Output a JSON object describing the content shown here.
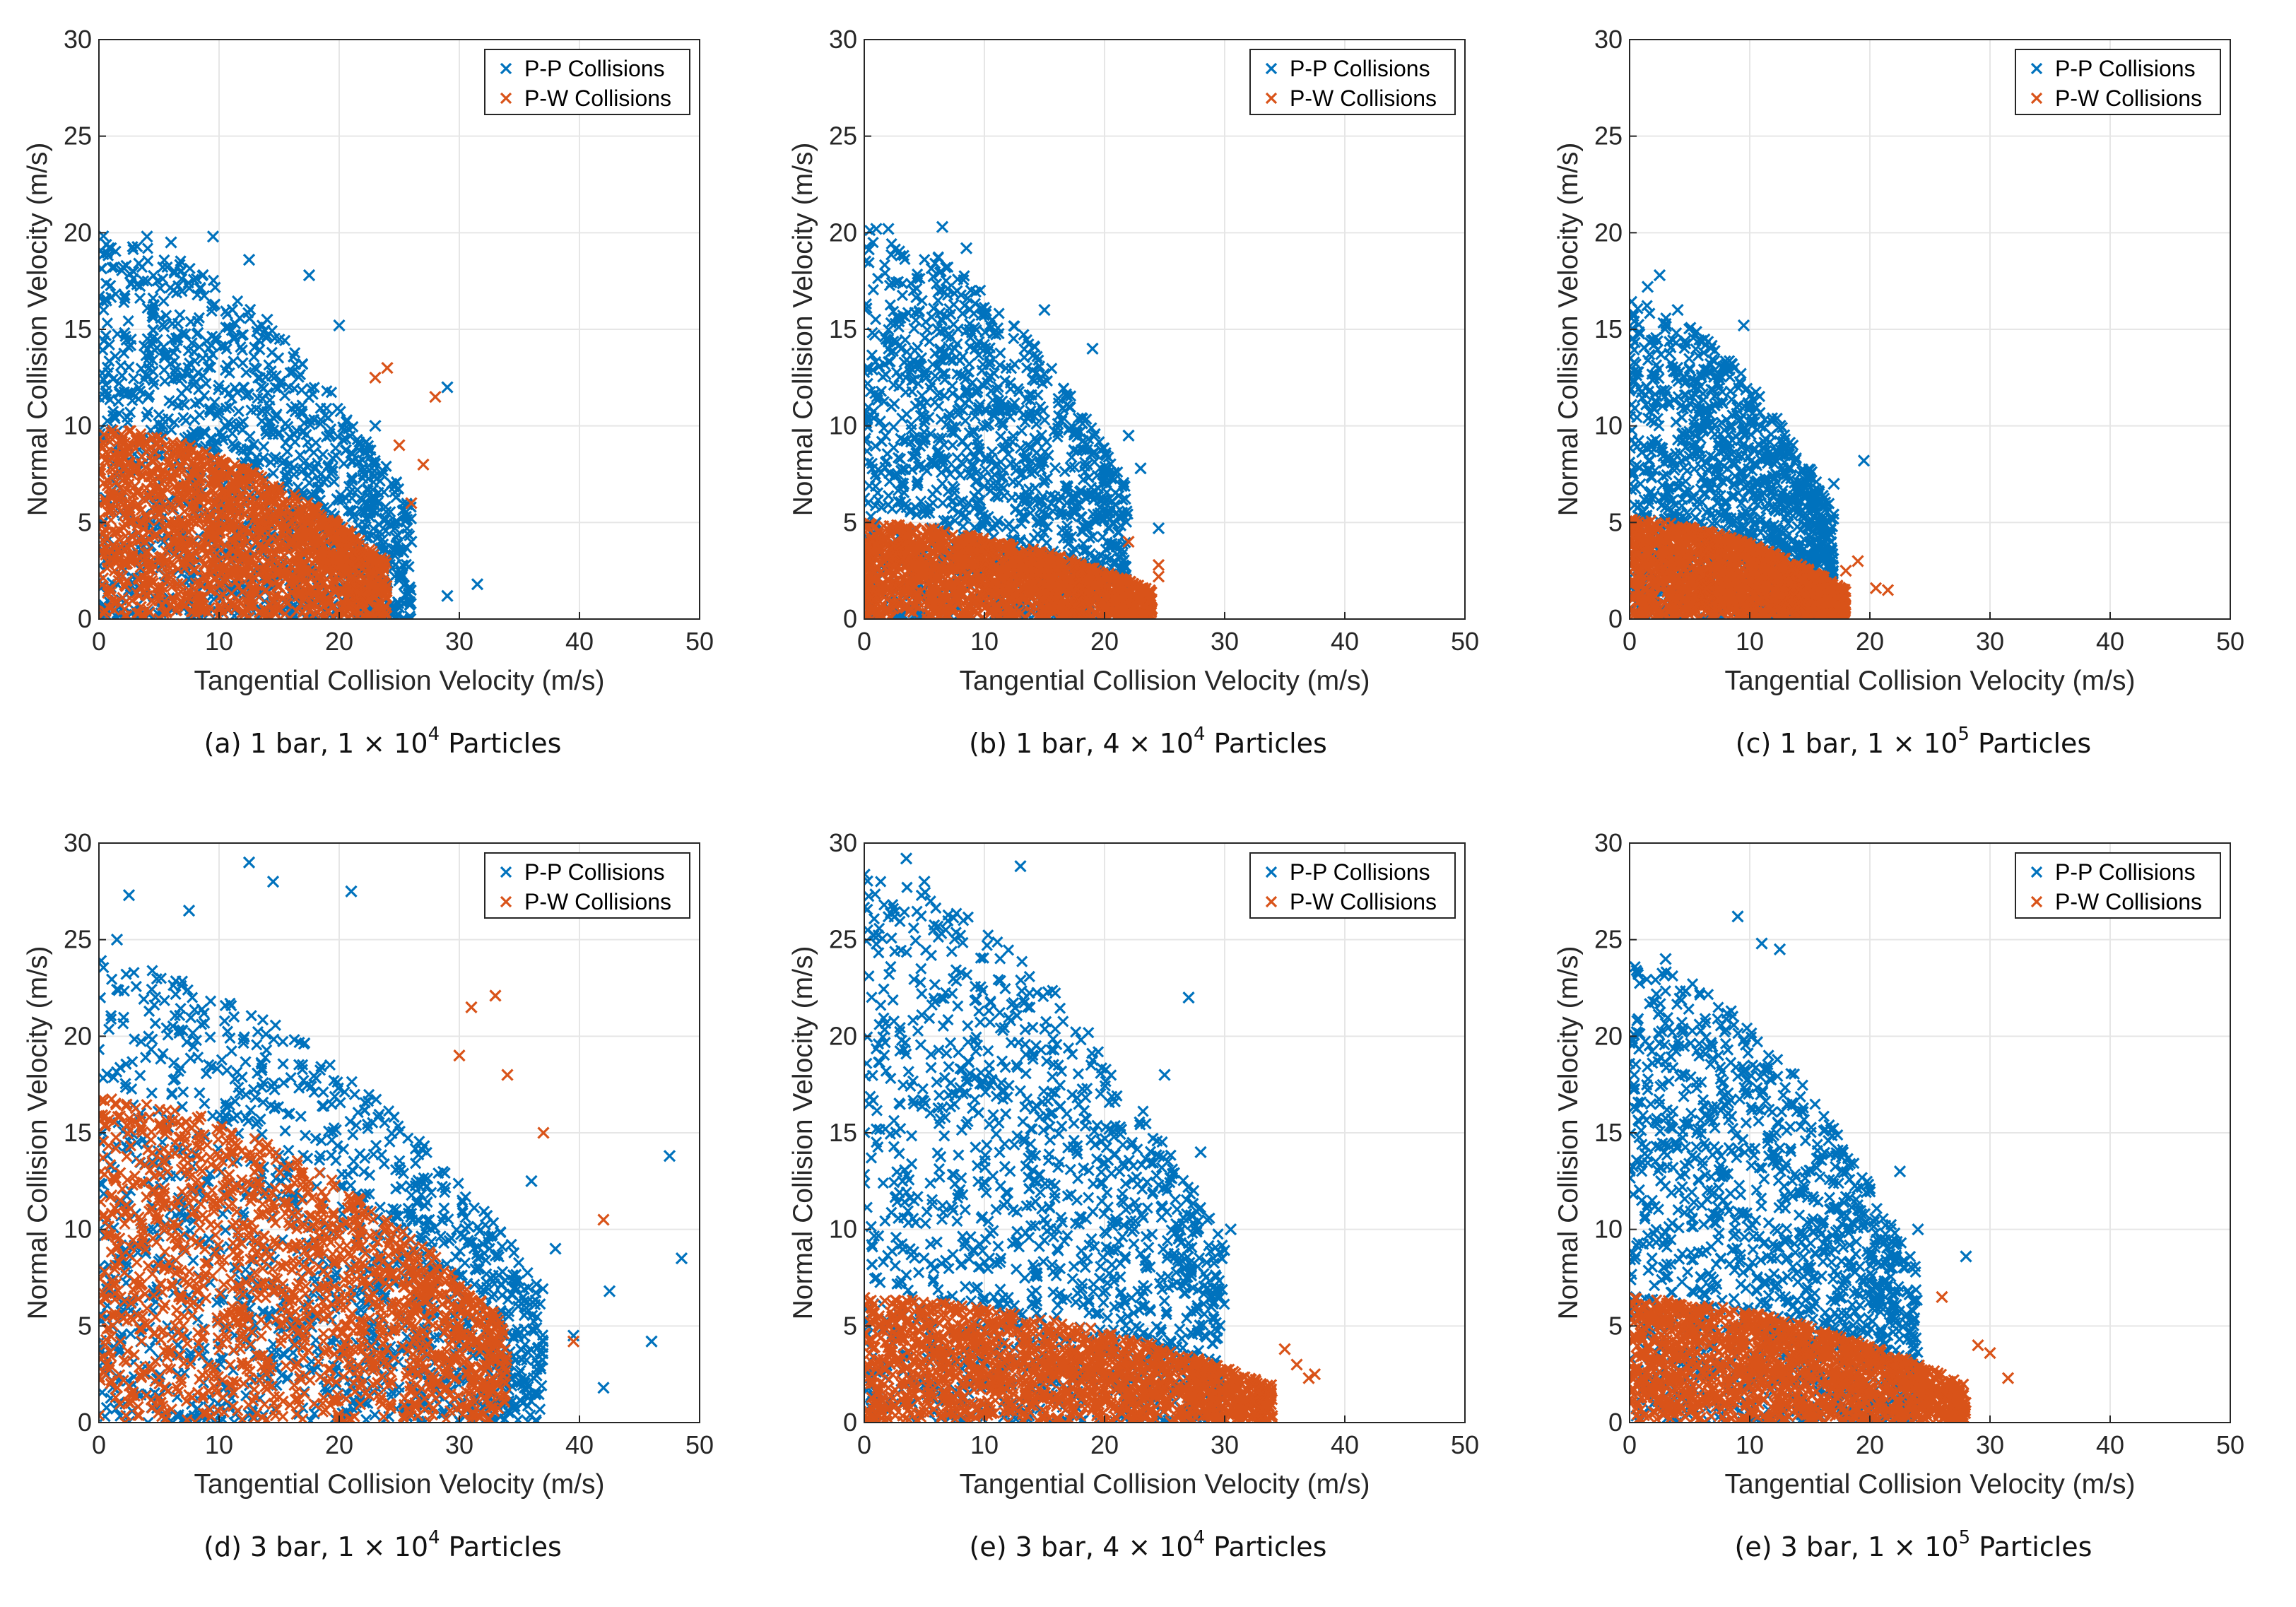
{
  "figure": {
    "legend_entries": [
      {
        "label": "P-P Collisions",
        "color": "#0072BD"
      },
      {
        "label": "P-W Collisions",
        "color": "#D95319"
      }
    ],
    "xlabel": "Tangential Collision Velocity (m/s)",
    "ylabel": "Normal Collision Velocity (m/s)"
  },
  "chart_data": [
    {
      "type": "scatter",
      "caption": {
        "prefix": "(a) 1 bar, 1 × 10",
        "exponent": "4",
        "suffix": " Particles"
      },
      "xlabel": "Tangential Collision Velocity (m/s)",
      "ylabel": "Normal Collision Velocity (m/s)",
      "xlim": [
        0,
        50
      ],
      "ylim": [
        0,
        30
      ],
      "xticks": [
        "0",
        "10",
        "20",
        "30",
        "40",
        "50"
      ],
      "yticks": [
        "0",
        "5",
        "10",
        "15",
        "20",
        "25",
        "30"
      ],
      "grid": true,
      "legend_position": "top-right",
      "series": [
        {
          "name": "P-P Collisions",
          "color": "#0072BD",
          "envelope": {
            "x_max": 26,
            "y_max": 20,
            "y_floor": 0
          },
          "points": [
            [
              1,
              19.2
            ],
            [
              4,
              19.8
            ],
            [
              6,
              19.5
            ],
            [
              9.5,
              19.8
            ],
            [
              12.5,
              18.6
            ],
            [
              14,
              15.5
            ],
            [
              17.5,
              17.8
            ],
            [
              20,
              15.2
            ],
            [
              23,
              10
            ],
            [
              29,
              12
            ],
            [
              31.5,
              1.8
            ],
            [
              29,
              1.2
            ],
            [
              26,
              4
            ],
            [
              25,
              2
            ]
          ]
        },
        {
          "name": "P-W Collisions",
          "color": "#D95319",
          "envelope": {
            "x_max": 24,
            "y_max": 10,
            "y_floor": 0
          },
          "points": [
            [
              24,
              13
            ],
            [
              23,
              12.5
            ],
            [
              28,
              11.5
            ],
            [
              27,
              8
            ],
            [
              26,
              6
            ],
            [
              25,
              9
            ]
          ]
        }
      ]
    },
    {
      "type": "scatter",
      "caption": {
        "prefix": "(b) 1 bar, 4 × 10",
        "exponent": "4",
        "suffix": " Particles"
      },
      "xlabel": "Tangential Collision Velocity (m/s)",
      "ylabel": "Normal Collision Velocity (m/s)",
      "xlim": [
        0,
        50
      ],
      "ylim": [
        0,
        30
      ],
      "xticks": [
        "0",
        "10",
        "20",
        "30",
        "40",
        "50"
      ],
      "yticks": [
        "0",
        "5",
        "10",
        "15",
        "20",
        "25",
        "30"
      ],
      "grid": true,
      "legend_position": "top-right",
      "series": [
        {
          "name": "P-P Collisions",
          "color": "#0072BD",
          "envelope": {
            "x_max": 22,
            "y_max": 20.3,
            "y_floor": 1
          },
          "points": [
            [
              1,
              20.2
            ],
            [
              2,
              20.2
            ],
            [
              6.5,
              20.3
            ],
            [
              8.5,
              19.2
            ],
            [
              15,
              16
            ],
            [
              19,
              14
            ],
            [
              22,
              9.5
            ],
            [
              23,
              7.8
            ],
            [
              21,
              5.5
            ],
            [
              24.5,
              4.7
            ]
          ]
        },
        {
          "name": "P-W Collisions",
          "color": "#D95319",
          "envelope": {
            "x_max": 24,
            "y_max": 5,
            "y_floor": 0
          },
          "points": [
            [
              24.5,
              2.8
            ],
            [
              24.5,
              2.2
            ],
            [
              23,
              1.2
            ],
            [
              22,
              4
            ]
          ]
        }
      ]
    },
    {
      "type": "scatter",
      "caption": {
        "prefix": "(c) 1 bar, 1 × 10",
        "exponent": "5",
        "suffix": " Particles"
      },
      "xlabel": "Tangential Collision Velocity (m/s)",
      "ylabel": "Normal Collision Velocity (m/s)",
      "xlim": [
        0,
        50
      ],
      "ylim": [
        0,
        30
      ],
      "xticks": [
        "0",
        "10",
        "20",
        "30",
        "40",
        "50"
      ],
      "yticks": [
        "0",
        "5",
        "10",
        "15",
        "20",
        "25",
        "30"
      ],
      "grid": true,
      "legend_position": "top-right",
      "series": [
        {
          "name": "P-P Collisions",
          "color": "#0072BD",
          "envelope": {
            "x_max": 17,
            "y_max": 16.5,
            "y_floor": 1
          },
          "points": [
            [
              1.5,
              17.2
            ],
            [
              2.5,
              17.8
            ],
            [
              4,
              16
            ],
            [
              9.5,
              15.2
            ],
            [
              19.5,
              8.2
            ],
            [
              17,
              7
            ]
          ]
        },
        {
          "name": "P-W Collisions",
          "color": "#D95319",
          "envelope": {
            "x_max": 18,
            "y_max": 5.2,
            "y_floor": 0
          },
          "points": [
            [
              20.5,
              1.6
            ],
            [
              21.5,
              1.5
            ],
            [
              19,
              3
            ],
            [
              18,
              2.5
            ]
          ]
        }
      ]
    },
    {
      "type": "scatter",
      "caption": {
        "prefix": "(d) 3 bar, 1 × 10",
        "exponent": "4",
        "suffix": " Particles"
      },
      "xlabel": "Tangential Collision Velocity (m/s)",
      "ylabel": "Normal Collision Velocity (m/s)",
      "xlim": [
        0,
        50
      ],
      "ylim": [
        0,
        30
      ],
      "xticks": [
        "0",
        "10",
        "20",
        "30",
        "40",
        "50"
      ],
      "yticks": [
        "0",
        "5",
        "10",
        "15",
        "20",
        "25",
        "30"
      ],
      "grid": true,
      "legend_position": "top-right",
      "series": [
        {
          "name": "P-P Collisions",
          "color": "#0072BD",
          "envelope": {
            "x_max": 37,
            "y_max": 24,
            "y_floor": 0
          },
          "points": [
            [
              12.5,
              29
            ],
            [
              2.5,
              27.3
            ],
            [
              14.5,
              28
            ],
            [
              21,
              27.5
            ],
            [
              7.5,
              26.5
            ],
            [
              1.5,
              25
            ],
            [
              47.5,
              13.8
            ],
            [
              48.5,
              8.5
            ],
            [
              42.5,
              6.8
            ],
            [
              46,
              4.2
            ],
            [
              42,
              1.8
            ],
            [
              39.5,
              4.5
            ],
            [
              36,
              12.5
            ],
            [
              38,
              9
            ]
          ]
        },
        {
          "name": "P-W Collisions",
          "color": "#D95319",
          "envelope": {
            "x_max": 34,
            "y_max": 17,
            "y_floor": 0
          },
          "points": [
            [
              33,
              22.1
            ],
            [
              31,
              21.5
            ],
            [
              37,
              15
            ],
            [
              42,
              10.5
            ],
            [
              39.5,
              4.2
            ],
            [
              34,
              18
            ],
            [
              30,
              19
            ]
          ]
        }
      ]
    },
    {
      "type": "scatter",
      "caption": {
        "prefix": "(e) 3 bar, 4 × 10",
        "exponent": "4",
        "suffix": " Particles"
      },
      "xlabel": "Tangential Collision Velocity (m/s)",
      "ylabel": "Normal Collision Velocity (m/s)",
      "xlim": [
        0,
        50
      ],
      "ylim": [
        0,
        30
      ],
      "xticks": [
        "0",
        "10",
        "20",
        "30",
        "40",
        "50"
      ],
      "yticks": [
        "0",
        "5",
        "10",
        "15",
        "20",
        "25",
        "30"
      ],
      "grid": true,
      "legend_position": "top-right",
      "series": [
        {
          "name": "P-P Collisions",
          "color": "#0072BD",
          "envelope": {
            "x_max": 30,
            "y_max": 28.5,
            "y_floor": 1
          },
          "points": [
            [
              3.5,
              29.2
            ],
            [
              13,
              28.8
            ],
            [
              5,
              28
            ],
            [
              25,
              18
            ],
            [
              28,
              14
            ],
            [
              30.5,
              10
            ],
            [
              27,
              22
            ]
          ]
        },
        {
          "name": "P-W Collisions",
          "color": "#D95319",
          "envelope": {
            "x_max": 34,
            "y_max": 6.5,
            "y_floor": 0
          },
          "points": [
            [
              37.5,
              2.5
            ],
            [
              37,
              2.3
            ],
            [
              35,
              3.8
            ],
            [
              33,
              2
            ],
            [
              36,
              3
            ]
          ]
        }
      ]
    },
    {
      "type": "scatter",
      "caption": {
        "prefix": "(e) 3 bar, 1 × 10",
        "exponent": "5",
        "suffix": " Particles"
      },
      "xlabel": "Tangential Collision Velocity (m/s)",
      "ylabel": "Normal Collision Velocity (m/s)",
      "xlim": [
        0,
        50
      ],
      "ylim": [
        0,
        30
      ],
      "xticks": [
        "0",
        "10",
        "20",
        "30",
        "40",
        "50"
      ],
      "yticks": [
        "0",
        "5",
        "10",
        "15",
        "20",
        "25",
        "30"
      ],
      "grid": true,
      "legend_position": "top-right",
      "series": [
        {
          "name": "P-P Collisions",
          "color": "#0072BD",
          "envelope": {
            "x_max": 24,
            "y_max": 24,
            "y_floor": 1
          },
          "points": [
            [
              9,
              26.2
            ],
            [
              11,
              24.8
            ],
            [
              12.5,
              24.5
            ],
            [
              3,
              24
            ],
            [
              22.5,
              13
            ],
            [
              28,
              8.6
            ],
            [
              24,
              10
            ]
          ]
        },
        {
          "name": "P-W Collisions",
          "color": "#D95319",
          "envelope": {
            "x_max": 28,
            "y_max": 6.5,
            "y_floor": 0
          },
          "points": [
            [
              31.5,
              2.3
            ],
            [
              30,
              3.6
            ],
            [
              29,
              4
            ],
            [
              26,
              6.5
            ]
          ]
        }
      ]
    }
  ]
}
